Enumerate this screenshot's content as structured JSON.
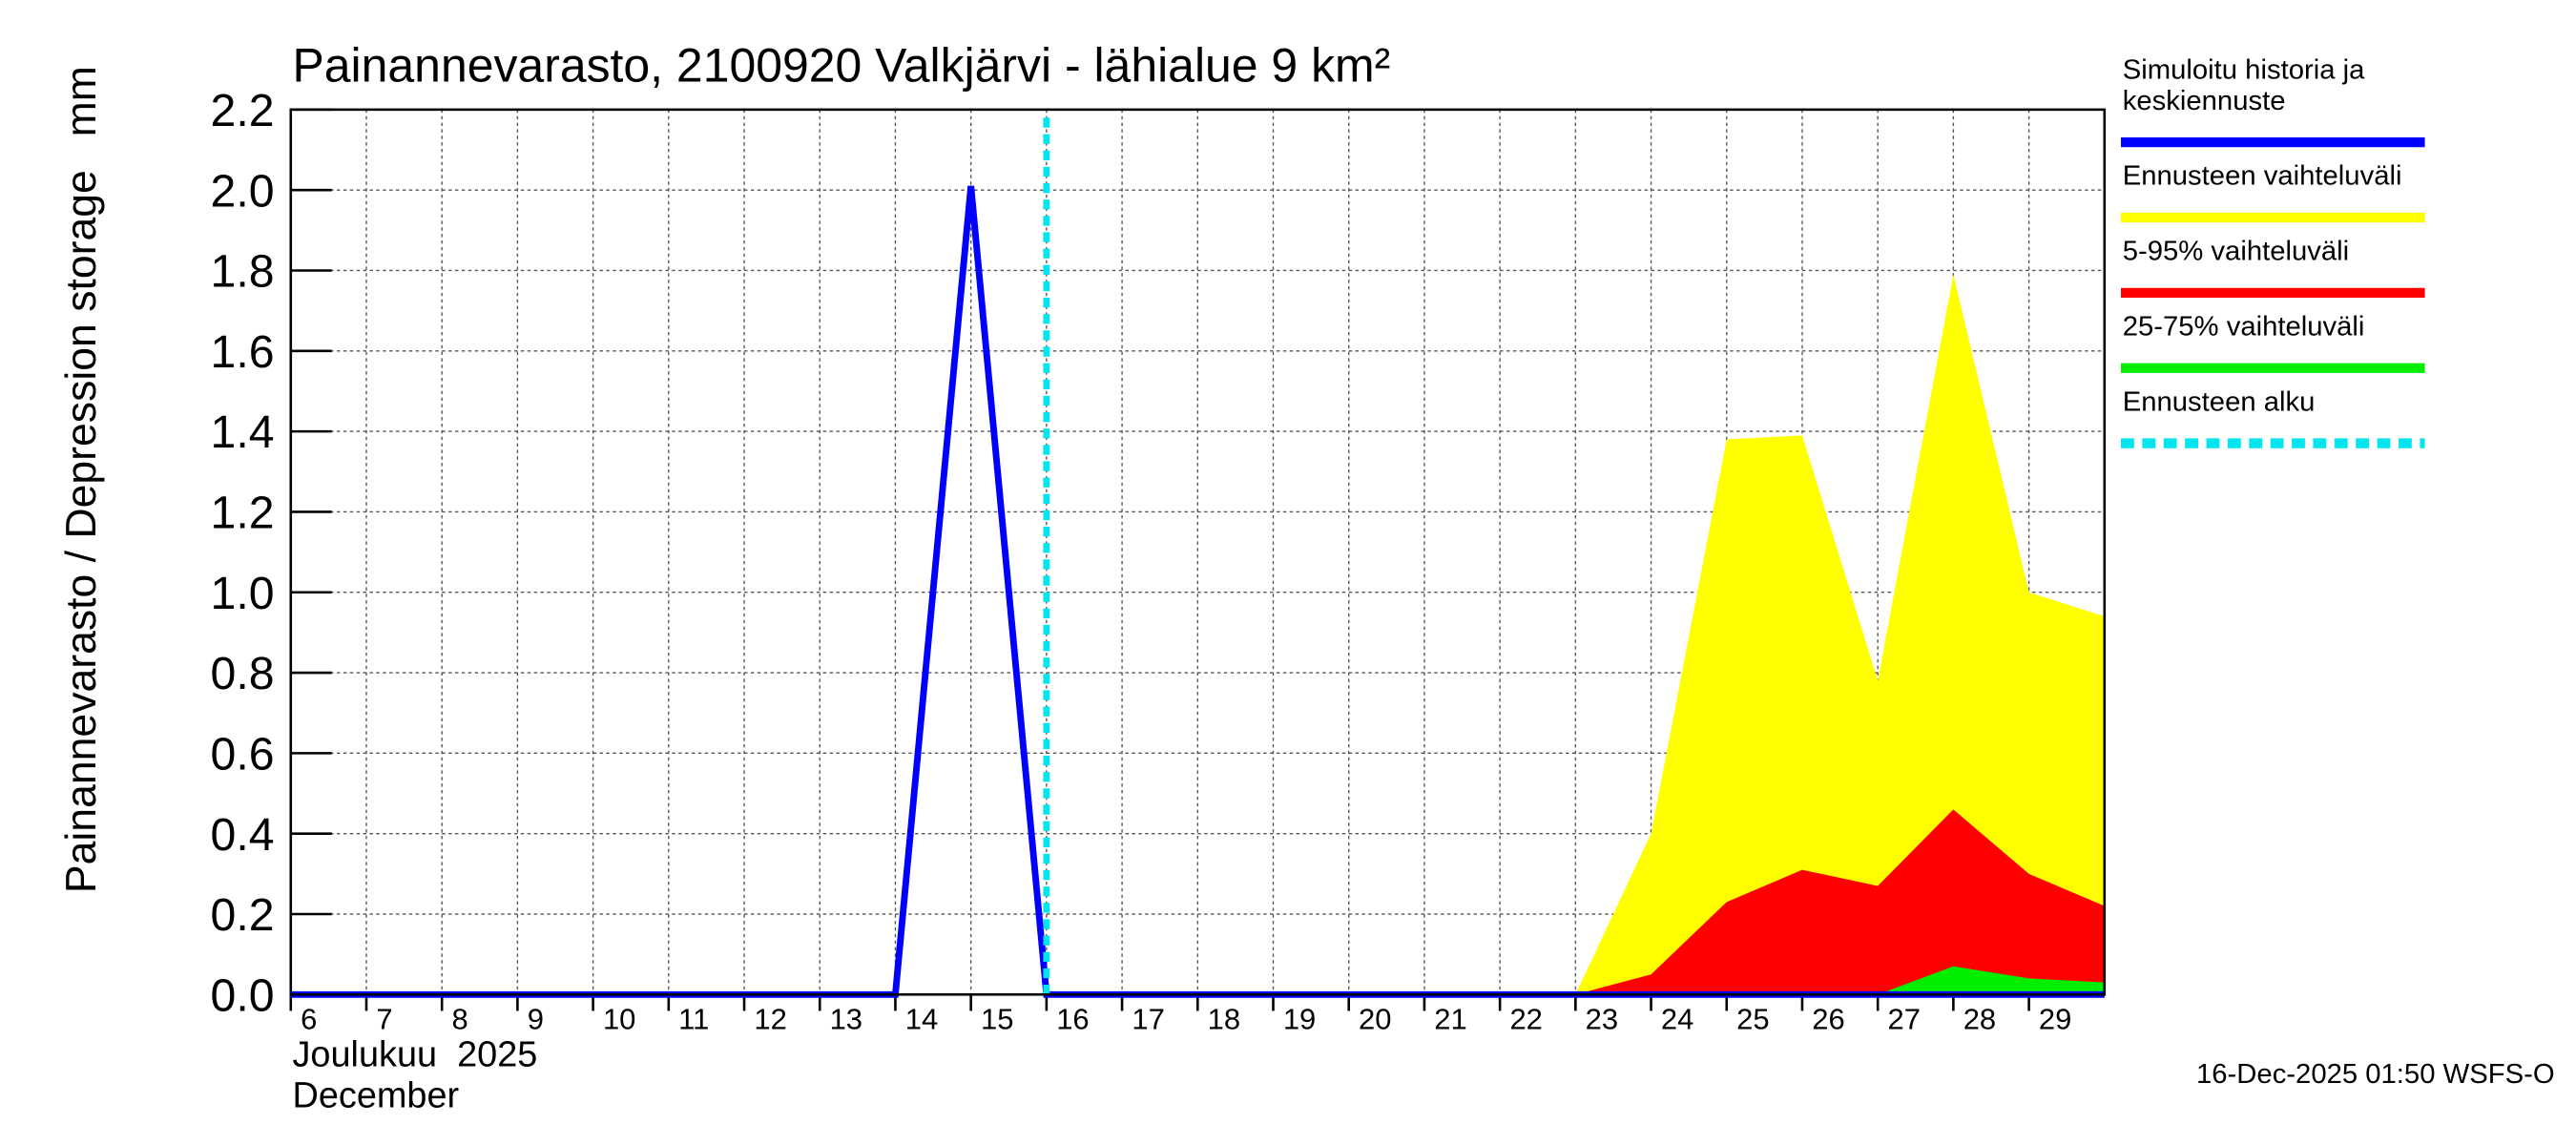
{
  "chart_data": {
    "type": "area_line",
    "title": "Painannevarasto, 2100920 Valkjärvi - lähialue 9 km²",
    "y_label": "Painannevarasto / Depression storage",
    "y_unit": "mm",
    "x_label_fi": "Joulukuu  2025",
    "x_label_en": "December",
    "footer": "16-Dec-2025 01:50 WSFS-O",
    "x": [
      6,
      7,
      8,
      9,
      10,
      11,
      12,
      13,
      14,
      15,
      16,
      17,
      18,
      19,
      20,
      21,
      22,
      23,
      24,
      25,
      26,
      27,
      28,
      29,
      30
    ],
    "xlim": [
      6,
      30
    ],
    "xticks": [
      6,
      7,
      8,
      9,
      10,
      11,
      12,
      13,
      14,
      15,
      16,
      17,
      18,
      19,
      20,
      21,
      22,
      23,
      24,
      25,
      26,
      27,
      28,
      29
    ],
    "ylim": [
      0,
      2.2
    ],
    "yticks": [
      {
        "value": 0,
        "label": "0.0"
      },
      {
        "value": 0.2,
        "label": "0.2"
      },
      {
        "value": 0.4,
        "label": "0.4"
      },
      {
        "value": 0.6,
        "label": "0.6"
      },
      {
        "value": 0.8,
        "label": "0.8"
      },
      {
        "value": 1,
        "label": "1.0"
      },
      {
        "value": 1.2,
        "label": "1.2"
      },
      {
        "value": 1.4,
        "label": "1.4"
      },
      {
        "value": 1.6,
        "label": "1.6"
      },
      {
        "value": 1.8,
        "label": "1.8"
      },
      {
        "value": 2,
        "label": "2.0"
      },
      {
        "value": 2.2,
        "label": "2.2"
      }
    ],
    "grid": true,
    "series": [
      {
        "name": "Simuloitu historia ja keskiennuste",
        "color": "#0000ff",
        "kind": "line",
        "values": [
          0,
          0,
          0,
          0,
          0,
          0,
          0,
          0,
          0,
          2.01,
          0,
          0,
          0,
          0,
          0,
          0,
          0,
          0,
          0,
          0,
          0,
          0,
          0,
          0,
          0
        ]
      },
      {
        "name": "Ennusteen vaihteluväli",
        "color": "#ffff00",
        "kind": "band",
        "values": [
          null,
          null,
          null,
          null,
          null,
          null,
          null,
          null,
          null,
          null,
          null,
          null,
          null,
          null,
          null,
          null,
          null,
          0,
          0.4,
          1.38,
          1.39,
          0.78,
          1.79,
          1.0,
          0.94
        ]
      },
      {
        "name": "5-95% vaihteluväli",
        "color": "#ff0000",
        "kind": "band",
        "values": [
          null,
          null,
          null,
          null,
          null,
          null,
          null,
          null,
          null,
          null,
          null,
          null,
          null,
          null,
          null,
          null,
          null,
          0,
          0.05,
          0.23,
          0.31,
          0.27,
          0.46,
          0.3,
          0.22
        ]
      },
      {
        "name": "25-75% vaihteluväli",
        "color": "#00ee00",
        "kind": "band",
        "values": [
          null,
          null,
          null,
          null,
          null,
          null,
          null,
          null,
          null,
          null,
          null,
          null,
          null,
          null,
          null,
          null,
          null,
          null,
          null,
          null,
          null,
          0,
          0.07,
          0.04,
          0.03
        ]
      }
    ],
    "forecast_start": {
      "name": "Ennusteen alku",
      "x": 16,
      "color": "#00e5ee"
    }
  }
}
